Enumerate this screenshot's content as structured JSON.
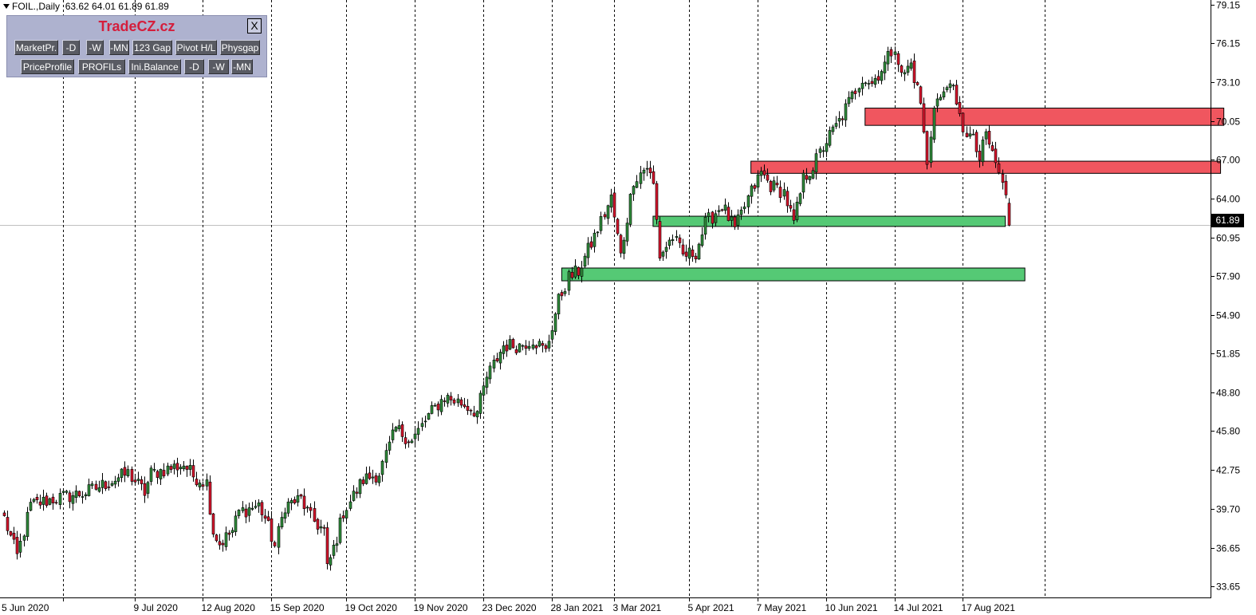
{
  "header": {
    "symbol": "FOIL.,Daily",
    "ohlc": "63.62 64.01 61.89 61.89"
  },
  "panel": {
    "brand": "TradeCZ.cz",
    "close_label": "X",
    "row1": [
      "MarketPr.",
      "-D",
      "-W",
      "-MN",
      "123 Gap",
      "Pivot H/L",
      "Physgap"
    ],
    "row2": [
      "PriceProfile",
      "PROFILs",
      "Ini.Balance",
      "-D",
      "-W",
      "-MN"
    ]
  },
  "colors": {
    "bull_body": "#2e8b3a",
    "bear_body": "#d6142b",
    "resistance_zone": "#f0565f",
    "support_zone": "#55c975",
    "panel_bg": "#aeb2cf",
    "brand": "#d41e3c"
  },
  "chart_data": {
    "type": "candlestick",
    "symbol": "FOIL.",
    "timeframe": "Daily",
    "last_price": "61.89",
    "ylim": [
      32.8,
      79.5
    ],
    "y_ticks": [
      79.15,
      76.15,
      73.1,
      70.05,
      67.0,
      64.0,
      60.95,
      57.9,
      54.9,
      51.85,
      48.8,
      45.8,
      42.75,
      39.7,
      36.65,
      33.65
    ],
    "y_tick_labels": [
      "79.15",
      "76.15",
      "73.10",
      "70.05",
      "67.00",
      "64.00",
      "60.95",
      "57.90",
      "54.90",
      "51.85",
      "48.80",
      "45.80",
      "42.75",
      "39.70",
      "36.65",
      "33.65"
    ],
    "x_labels": [
      "5 Jun 2020",
      "9 Jul 2020",
      "12 Aug 2020",
      "15 Sep 2020",
      "19 Oct 2020",
      "19 Nov 2020",
      "23 Dec 2020",
      "28 Jan 2021",
      "3 Mar 2021",
      "5 Apr 2021",
      "7 May 2021",
      "10 Jun 2021",
      "14 Jul 2021",
      "17 Aug 2021"
    ],
    "anchors": [
      [
        0,
        39.0
      ],
      [
        4,
        36.0
      ],
      [
        8,
        40.0
      ],
      [
        15,
        40.5
      ],
      [
        25,
        41.0
      ],
      [
        38,
        42.5
      ],
      [
        43,
        41.0
      ],
      [
        45,
        42.5
      ],
      [
        55,
        43.2
      ],
      [
        58,
        42.3
      ],
      [
        62,
        41.8
      ],
      [
        64,
        38.0
      ],
      [
        66,
        37.0
      ],
      [
        70,
        38.0
      ],
      [
        72,
        39.5
      ],
      [
        78,
        40.0
      ],
      [
        80,
        39.0
      ],
      [
        83,
        36.8
      ],
      [
        86,
        40.0
      ],
      [
        91,
        40.5
      ],
      [
        94,
        39.0
      ],
      [
        98,
        38.0
      ],
      [
        99,
        35.0
      ],
      [
        102,
        37.5
      ],
      [
        104,
        39.5
      ],
      [
        110,
        42.0
      ],
      [
        115,
        42.5
      ],
      [
        120,
        46.0
      ],
      [
        125,
        45.0
      ],
      [
        130,
        47.0
      ],
      [
        135,
        48.5
      ],
      [
        140,
        48.0
      ],
      [
        145,
        47.3
      ],
      [
        148,
        50.0
      ],
      [
        153,
        52.5
      ],
      [
        158,
        52.5
      ],
      [
        162,
        53.0
      ],
      [
        166,
        52.0
      ],
      [
        170,
        56.0
      ],
      [
        173,
        57.8
      ],
      [
        176,
        58.3
      ],
      [
        181,
        61.0
      ],
      [
        186,
        64.0
      ],
      [
        189,
        59.5
      ],
      [
        193,
        65.5
      ],
      [
        197,
        66.5
      ],
      [
        199,
        65.0
      ],
      [
        201,
        59.5
      ],
      [
        205,
        61.0
      ],
      [
        208,
        59.5
      ],
      [
        212,
        59.8
      ],
      [
        215,
        62.0
      ],
      [
        220,
        63.5
      ],
      [
        224,
        61.5
      ],
      [
        228,
        64.0
      ],
      [
        232,
        66.0
      ],
      [
        235,
        65.0
      ],
      [
        239,
        64.5
      ],
      [
        242,
        62.0
      ],
      [
        245,
        65.5
      ],
      [
        248,
        66.5
      ],
      [
        252,
        68.5
      ],
      [
        256,
        70.0
      ],
      [
        260,
        72.0
      ],
      [
        263,
        73.5
      ],
      [
        266,
        73.0
      ],
      [
        270,
        74.5
      ],
      [
        273,
        76.0
      ],
      [
        275,
        73.5
      ],
      [
        278,
        74.5
      ],
      [
        281,
        71.5
      ],
      [
        283,
        66.5
      ],
      [
        285,
        71.5
      ],
      [
        288,
        72.0
      ],
      [
        290,
        73.5
      ],
      [
        292,
        71.0
      ],
      [
        294,
        69.5
      ],
      [
        297,
        68.5
      ],
      [
        299,
        67.0
      ],
      [
        301,
        69.0
      ],
      [
        303,
        67.5
      ],
      [
        305,
        66.0
      ],
      [
        307,
        64.0
      ],
      [
        308,
        61.89
      ]
    ],
    "zones": [
      {
        "type": "resistance",
        "from_bar": 264,
        "to_bar": 374,
        "low": 69.7,
        "high": 71.05
      },
      {
        "type": "resistance",
        "from_bar": 229,
        "to_bar": 373,
        "low": 65.95,
        "high": 66.9
      },
      {
        "type": "support",
        "from_bar": 199,
        "to_bar": 307,
        "low": 61.8,
        "high": 62.6
      },
      {
        "type": "support",
        "from_bar": 171,
        "to_bar": 313,
        "low": 57.55,
        "high": 58.55
      }
    ],
    "period_separators": [
      18,
      40,
      61,
      82,
      105,
      126,
      147,
      168,
      187,
      210,
      231,
      252,
      273,
      294,
      319
    ],
    "bars_total": 370
  }
}
